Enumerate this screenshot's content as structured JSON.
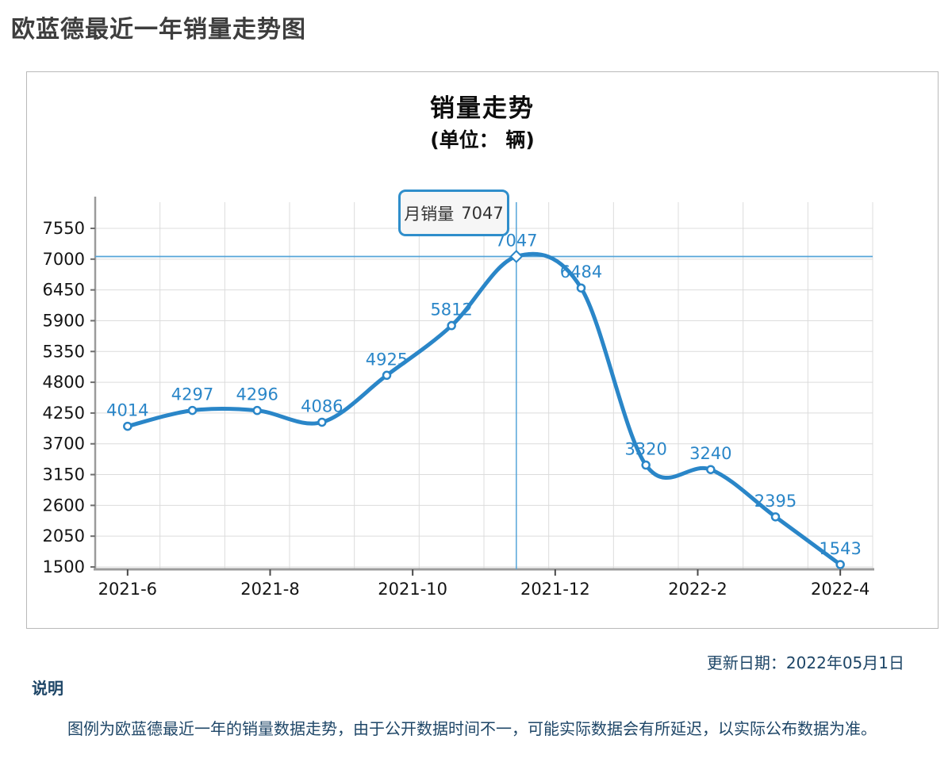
{
  "page": {
    "title": "欧蓝德最近一年销量走势图",
    "update_date": "更新日期：2022年05月1日",
    "note_label": "说明",
    "note_text": "图例为欧蓝德最近一年的销量数据走势，由于公开数据时间不一，可能实际数据会有所延迟，以实际公布数据为准。"
  },
  "chart": {
    "title": "销量走势",
    "subtitle": "(单位： 辆)",
    "tooltip": {
      "label": "月销量",
      "value": "7047"
    }
  },
  "chart_data": {
    "type": "line",
    "series": [
      {
        "name": "月销量",
        "values": [
          4014,
          4297,
          4296,
          4086,
          4925,
          5812,
          7047,
          6484,
          3320,
          3240,
          2395,
          1543
        ]
      }
    ],
    "point_labels": [
      "4014",
      "4297",
      "4296",
      "4086",
      "4925",
      "5812",
      "7047",
      "6484",
      "3320",
      "3240",
      "2395",
      "1543"
    ],
    "x_tick_labels": [
      "2021-6",
      "2021-8",
      "2021-10",
      "2021-12",
      "2022-2",
      "2022-4"
    ],
    "y_ticks": [
      7550,
      7000,
      6450,
      5900,
      5350,
      4800,
      4250,
      3700,
      3150,
      2600,
      2050,
      1500
    ],
    "ylim": [
      1500,
      7550
    ],
    "y_tick_step": 550,
    "grid": true,
    "smooth": true,
    "highlight": {
      "index": 6,
      "value": 7047,
      "tooltip_text": "月销量 7047",
      "marker": "diamond",
      "crosshair": true
    },
    "colors": {
      "line": "#2a86c8",
      "point_label": "#2a86c8",
      "marker_fill": "#ffffff",
      "crosshair": "#55a4d9",
      "gridline": "#dcdcdc",
      "axis_line": "#9b9b9b",
      "tick": "#4a4a4a",
      "axis_text": "#141414",
      "tooltip_border": "#2f8ecb",
      "note_text": "#1e4667"
    }
  }
}
